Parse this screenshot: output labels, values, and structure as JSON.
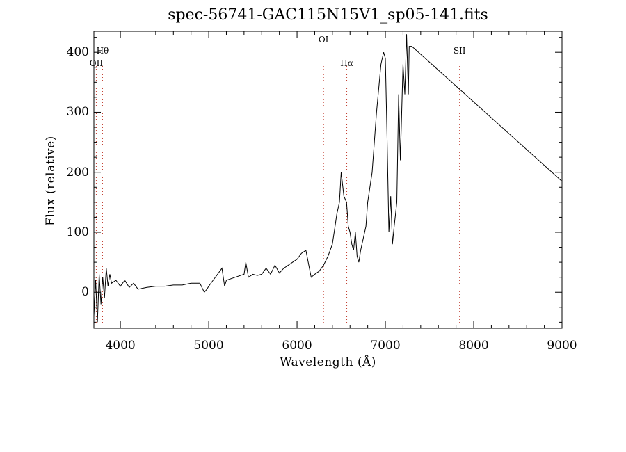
{
  "chart_data": {
    "type": "line",
    "title": "spec-56741-GAC115N15V1_sp05-141.fits",
    "xlabel": "Wavelength (Å)",
    "ylabel": "Flux (relative)",
    "xlim": [
      3700,
      9000
    ],
    "ylim": [
      -60,
      435
    ],
    "xticks": [
      4000,
      5000,
      6000,
      7000,
      8000,
      9000
    ],
    "yticks": [
      0,
      100,
      200,
      300,
      400
    ],
    "grid": false,
    "line_color": "#000000",
    "marker_color": "#c0392b",
    "lines": [
      {
        "label": "Hθ",
        "x": 3798,
        "row": 1
      },
      {
        "label": "OII",
        "x": 3727,
        "row": 2
      },
      {
        "label": "OI",
        "x": 6300,
        "row": 0
      },
      {
        "label": "Hα",
        "x": 6563,
        "row": 2
      },
      {
        "label": "SII",
        "x": 7840,
        "row": 1
      }
    ],
    "x": [
      3700,
      3720,
      3740,
      3760,
      3780,
      3800,
      3820,
      3840,
      3860,
      3880,
      3900,
      3950,
      4000,
      4050,
      4100,
      4150,
      4200,
      4300,
      4400,
      4500,
      4600,
      4700,
      4800,
      4900,
      4950,
      4980,
      5000,
      5050,
      5100,
      5150,
      5180,
      5200,
      5300,
      5400,
      5420,
      5450,
      5500,
      5550,
      5600,
      5650,
      5700,
      5750,
      5800,
      5850,
      5900,
      5950,
      6000,
      6050,
      6100,
      6140,
      6160,
      6200,
      6250,
      6300,
      6350,
      6400,
      6430,
      6450,
      6480,
      6500,
      6530,
      6560,
      6580,
      6600,
      6620,
      6640,
      6660,
      6680,
      6700,
      6720,
      6750,
      6780,
      6800,
      6850,
      6900,
      6950,
      6980,
      7000,
      7020,
      7040,
      7060,
      7080,
      7100,
      7130,
      7150,
      7170,
      7200,
      7220,
      7240,
      7260,
      7270,
      7280,
      7290,
      7300,
      9000
    ],
    "y": [
      -40,
      20,
      -50,
      30,
      -20,
      25,
      -10,
      40,
      10,
      30,
      15,
      20,
      10,
      20,
      8,
      15,
      5,
      8,
      10,
      10,
      12,
      12,
      15,
      15,
      0,
      5,
      10,
      20,
      30,
      40,
      10,
      20,
      25,
      30,
      50,
      25,
      30,
      28,
      30,
      40,
      30,
      45,
      32,
      40,
      45,
      50,
      55,
      65,
      70,
      40,
      25,
      30,
      35,
      45,
      60,
      80,
      110,
      130,
      150,
      200,
      160,
      150,
      110,
      100,
      80,
      70,
      100,
      60,
      50,
      70,
      90,
      110,
      150,
      200,
      300,
      380,
      400,
      390,
      250,
      100,
      160,
      80,
      110,
      150,
      330,
      220,
      380,
      330,
      430,
      330,
      410,
      410,
      410,
      410,
      185
    ]
  }
}
